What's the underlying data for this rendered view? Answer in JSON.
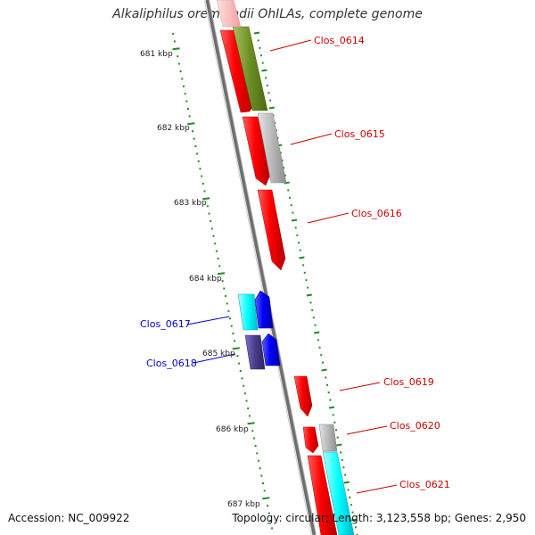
{
  "title": "Alkaliphilus oremlandii OhILAs, complete genome",
  "footer": {
    "accession": "Accession: NC_009922",
    "summary": "Topology: circular; Length: 3,123,558 bp; Genes: 2,950"
  },
  "ruler": {
    "tick_labels": [
      "681 kbp",
      "682 kbp",
      "683 kbp",
      "684 kbp",
      "685 kbp",
      "686 kbp",
      "687 kbp"
    ]
  },
  "genes": [
    {
      "label": "Clos_0614",
      "color": "#cc0000"
    },
    {
      "label": "Clos_0615",
      "color": "#cc0000"
    },
    {
      "label": "Clos_0616",
      "color": "#cc0000"
    },
    {
      "label": "Clos_0617",
      "color": "#0000cc"
    },
    {
      "label": "Clos_0618",
      "color": "#0000cc"
    },
    {
      "label": "Clos_0619",
      "color": "#cc0000"
    },
    {
      "label": "Clos_0620",
      "color": "#cc0000"
    },
    {
      "label": "Clos_0621",
      "color": "#cc0000"
    }
  ],
  "colors": {
    "forward_strand": "#ff0000",
    "reverse_strand": "#0000ff",
    "cog_olive": "#6b8e23",
    "cog_gray": "#b0b0b0",
    "cog_cyan": "#00ffff",
    "cog_slate": "#483d8b",
    "ruler_ticks": "#228b22",
    "backbone": "#777777"
  }
}
